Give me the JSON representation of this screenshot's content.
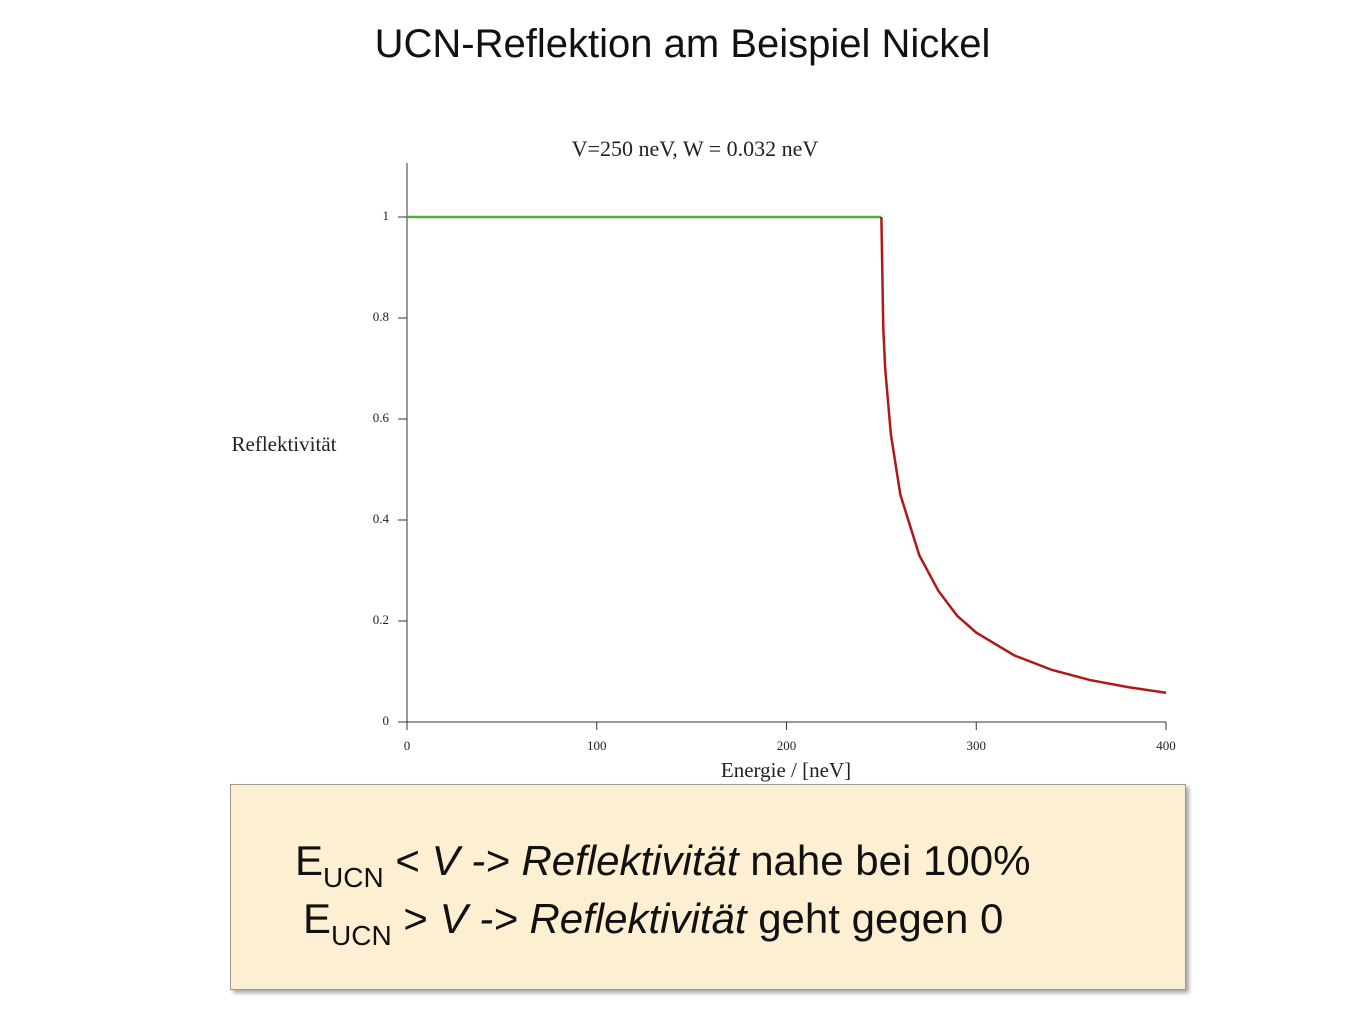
{
  "slide_title": "UCN-Reflektion am Beispiel Nickel",
  "chart_data": {
    "type": "line",
    "title": "V=250 neV, W = 0.032 neV",
    "x_label": "Energie / [neV]",
    "y_label": "Reflektivität",
    "xlim": [
      0,
      400
    ],
    "xticks": [
      0,
      100,
      200,
      300,
      400
    ],
    "ylim": [
      0,
      1.1
    ],
    "yticks": [
      0,
      0.2,
      0.4,
      0.6,
      0.8,
      1
    ],
    "series": [
      {
        "color": "#4caf3a",
        "x": [
          0,
          250
        ],
        "values": [
          1,
          1
        ]
      },
      {
        "color": "#b01818",
        "x": [
          250,
          251,
          252,
          255,
          260,
          270,
          280,
          290,
          300,
          320,
          340,
          360,
          380,
          400
        ],
        "values": [
          1,
          0.78,
          0.7,
          0.57,
          0.45,
          0.33,
          0.26,
          0.21,
          0.177,
          0.132,
          0.103,
          0.083,
          0.069,
          0.058
        ]
      }
    ]
  },
  "text_box": {
    "lines": [
      {
        "symbol": "E",
        "subscript": "UCN",
        "relation": "<",
        "variable": "V",
        "arrow": "->",
        "term": "Reflektivität",
        "rest": "nahe bei 100%"
      },
      {
        "symbol": "E",
        "subscript": "UCN",
        "relation": ">",
        "variable": "V",
        "arrow": "->",
        "term": "Reflektivität",
        "rest": "geht gegen 0"
      }
    ]
  }
}
